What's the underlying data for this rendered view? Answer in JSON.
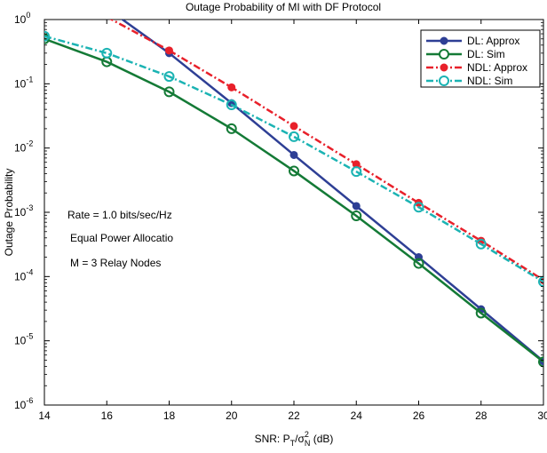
{
  "chart_data": {
    "type": "line",
    "title": "Outage Probability of MI with DF Protocol",
    "xlabel": "SNR: P_T/σ_N^2 (dB)",
    "ylabel": "Outage Probability",
    "xlim": [
      14,
      30
    ],
    "ylim": [
      1e-06,
      1
    ],
    "yscale": "log",
    "grid": false,
    "legend_position": "top-right",
    "x_ticks": [
      "14",
      "16",
      "18",
      "20",
      "22",
      "24",
      "26",
      "28",
      "30"
    ],
    "y_ticks": [
      {
        "mant": "10",
        "exp": "0"
      },
      {
        "mant": "10",
        "exp": "-1"
      },
      {
        "mant": "10",
        "exp": "-2"
      },
      {
        "mant": "10",
        "exp": "-3"
      },
      {
        "mant": "10",
        "exp": "-4"
      },
      {
        "mant": "10",
        "exp": "-5"
      },
      {
        "mant": "10",
        "exp": "-6"
      }
    ],
    "annotations": [
      "Rate = 1.0 bits/sec/Hz",
      "Equal Power Allocatio",
      "M = 3 Relay Nodes"
    ],
    "series": [
      {
        "name": "DL: Approx",
        "color": "#2e3f95",
        "line": "solid",
        "marker": "filled",
        "x": [
          16,
          18,
          20,
          22,
          24,
          26,
          28,
          30
        ],
        "y": [
          1.5,
          0.3,
          0.05,
          0.0078,
          0.00125,
          0.0002,
          3.1e-05,
          4.8e-06
        ]
      },
      {
        "name": "DL: Sim",
        "color": "#147a36",
        "line": "solid",
        "marker": "open",
        "x": [
          14,
          16,
          18,
          20,
          22,
          24,
          26,
          28,
          30
        ],
        "y": [
          0.5,
          0.22,
          0.075,
          0.02,
          0.0044,
          0.00088,
          0.00016,
          2.7e-05,
          4.7e-06
        ]
      },
      {
        "name": "NDL: Approx",
        "color": "#e8202a",
        "line": "dashdot",
        "marker": "filled",
        "x": [
          16,
          18,
          20,
          22,
          24,
          26,
          28,
          30
        ],
        "y": [
          1.1,
          0.33,
          0.088,
          0.022,
          0.0056,
          0.0014,
          0.00036,
          8.8e-05
        ]
      },
      {
        "name": "NDL: Sim",
        "color": "#1bb3b3",
        "line": "dashdot",
        "marker": "open",
        "x": [
          14,
          16,
          18,
          20,
          22,
          24,
          26,
          28,
          30
        ],
        "y": [
          0.55,
          0.3,
          0.13,
          0.047,
          0.015,
          0.0043,
          0.0012,
          0.00032,
          8.3e-05
        ]
      }
    ]
  }
}
